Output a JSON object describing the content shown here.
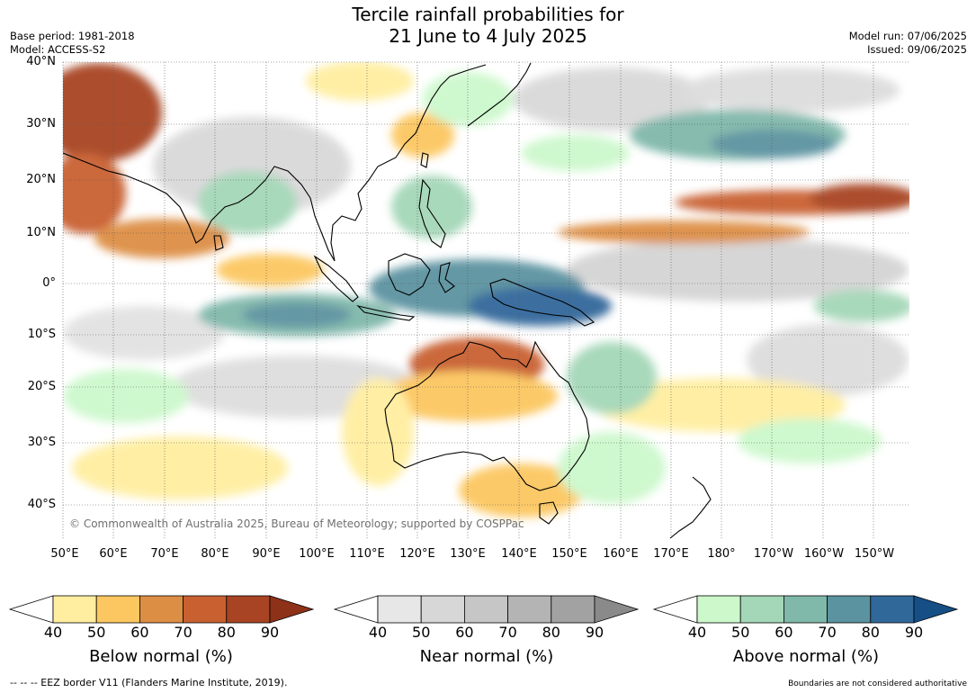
{
  "title_line1": "Tercile rainfall probabilities for",
  "title_line2": "21 June to 4 July 2025",
  "base_period": "Base period: 1981-2018",
  "model": "Model: ACCESS-S2",
  "model_run": "Model run: 07/06/2025",
  "issued": "Issued: 09/06/2025",
  "lat_labels": [
    "40°N",
    "30°N",
    "20°N",
    "10°N",
    "0°",
    "10°S",
    "20°S",
    "30°S",
    "40°S"
  ],
  "lon_labels": [
    "50°E",
    "60°E",
    "70°E",
    "80°E",
    "90°E",
    "100°E",
    "110°E",
    "120°E",
    "130°E",
    "140°E",
    "150°E",
    "160°E",
    "170°E",
    "180°",
    "170°W",
    "160°W",
    "150°W"
  ],
  "copyright": "© Commonwealth of Australia 2025, Bureau of Meteorology; supported by COSPPac",
  "colorbars": [
    {
      "label": "Below normal (%)",
      "ticks": [
        "40",
        "50",
        "60",
        "70",
        "80",
        "90"
      ],
      "colors": [
        "#ffeea0",
        "#fcc761",
        "#dd8e45",
        "#c96030",
        "#a84423",
        "#8e3119"
      ]
    },
    {
      "label": "Near normal (%)",
      "ticks": [
        "40",
        "50",
        "60",
        "70",
        "80",
        "90"
      ],
      "colors": [
        "#e7e7e7",
        "#d7d7d7",
        "#c6c6c6",
        "#b4b4b4",
        "#a2a2a2",
        "#8a8a8a"
      ]
    },
    {
      "label": "Above normal (%)",
      "ticks": [
        "40",
        "50",
        "60",
        "70",
        "80",
        "90"
      ],
      "colors": [
        "#ccf8cc",
        "#a4d7b8",
        "#80b8aa",
        "#5b93a0",
        "#31689a",
        "#164f85"
      ]
    }
  ],
  "footer_left": "--  --  -- EEZ border V11 (Flanders Marine Institute, 2019).",
  "footer_right": "Boundaries are not considered authoritative"
}
